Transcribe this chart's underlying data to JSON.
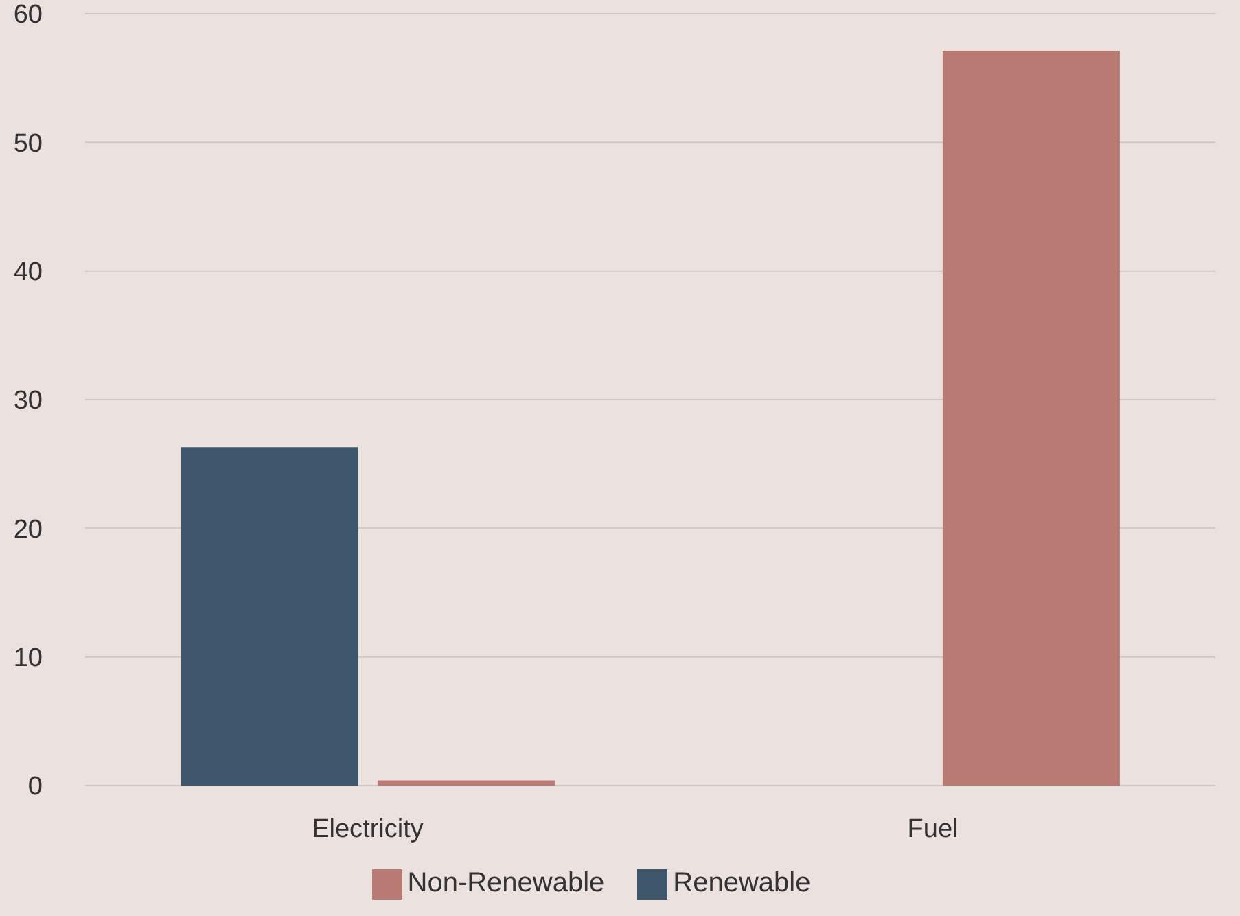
{
  "chart_data": {
    "type": "bar",
    "categories": [
      "Electricity",
      "Fuel"
    ],
    "series": [
      {
        "name": "Renewable",
        "color": "#3e566b",
        "values": [
          26.3,
          0
        ]
      },
      {
        "name": "Non-Renewable",
        "color": "#b87a73",
        "values": [
          0.4,
          57.1
        ]
      }
    ],
    "ylim": [
      0,
      60
    ],
    "yticks": [
      0,
      10,
      20,
      30,
      40,
      50,
      60
    ],
    "grid": "y",
    "legend": "bottom"
  }
}
